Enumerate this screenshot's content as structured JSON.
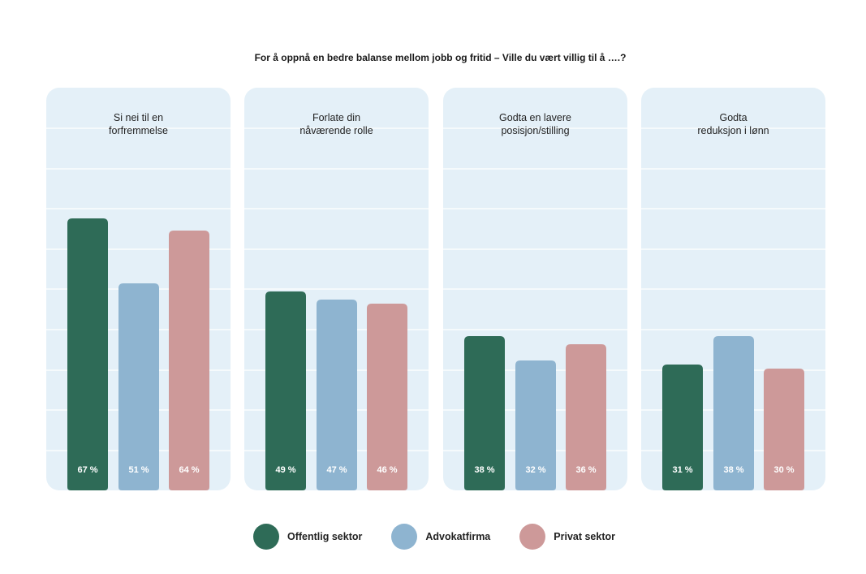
{
  "colors": {
    "offentlig": "#2e6b57",
    "advokat": "#8eb4d0",
    "privat": "#cd9999",
    "panel_bg": "#e4f0f8",
    "grid": "#ffffff"
  },
  "chart_data": {
    "type": "bar",
    "title": "For å oppnå en bedre balanse mellom jobb og fritid – Ville du vært villig til å ….?",
    "categories": [
      [
        "Si nei til en",
        "forfremmelse"
      ],
      [
        "Forlate din",
        "nåværende rolle"
      ],
      [
        "Godta en lavere",
        "posisjon/stilling"
      ],
      [
        "Godta",
        "reduksjon i lønn"
      ]
    ],
    "series": [
      {
        "name": "Offentlig sektor",
        "color": "#2e6b57",
        "values": [
          67,
          49,
          38,
          31
        ],
        "labels": [
          "67 %",
          "49 %",
          "38 %",
          "31 %"
        ]
      },
      {
        "name": "Advokatfirma",
        "color": "#8eb4d0",
        "values": [
          51,
          47,
          32,
          38
        ],
        "labels": [
          "51 %",
          "47 %",
          "32 %",
          "38 %"
        ]
      },
      {
        "name": "Privat sektor",
        "color": "#cd9999",
        "values": [
          64,
          46,
          36,
          30
        ],
        "labels": [
          "64 %",
          "46 %",
          "36 %",
          "30 %"
        ]
      }
    ],
    "ylim": [
      0,
      100
    ],
    "grid": true,
    "legend_position": "bottom-center"
  }
}
